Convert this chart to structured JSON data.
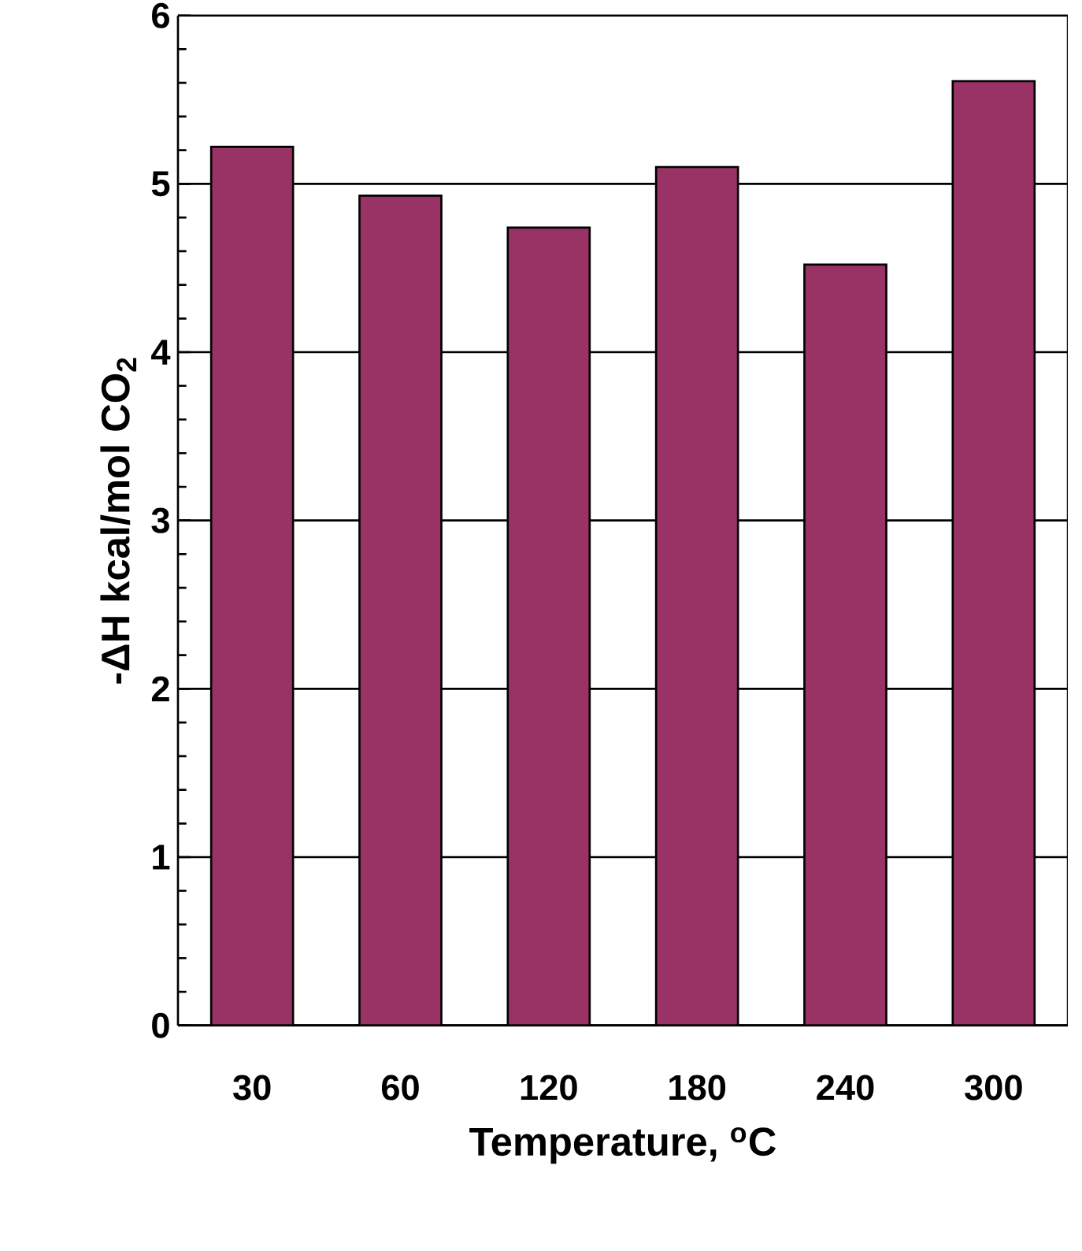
{
  "chart_data": {
    "type": "bar",
    "xlabel": "Temperature, $^{o}$C",
    "ylabel": "-ΔH kcal/mol CO$_{2}$",
    "categories": [
      "30",
      "60",
      "120",
      "180",
      "240",
      "300"
    ],
    "values": [
      5.22,
      4.93,
      4.74,
      5.1,
      4.52,
      5.61
    ],
    "color": "#993366",
    "ylim": [
      0,
      6
    ],
    "yticks": [
      0,
      1,
      2,
      3,
      4,
      5,
      6
    ],
    "grid": "y"
  }
}
